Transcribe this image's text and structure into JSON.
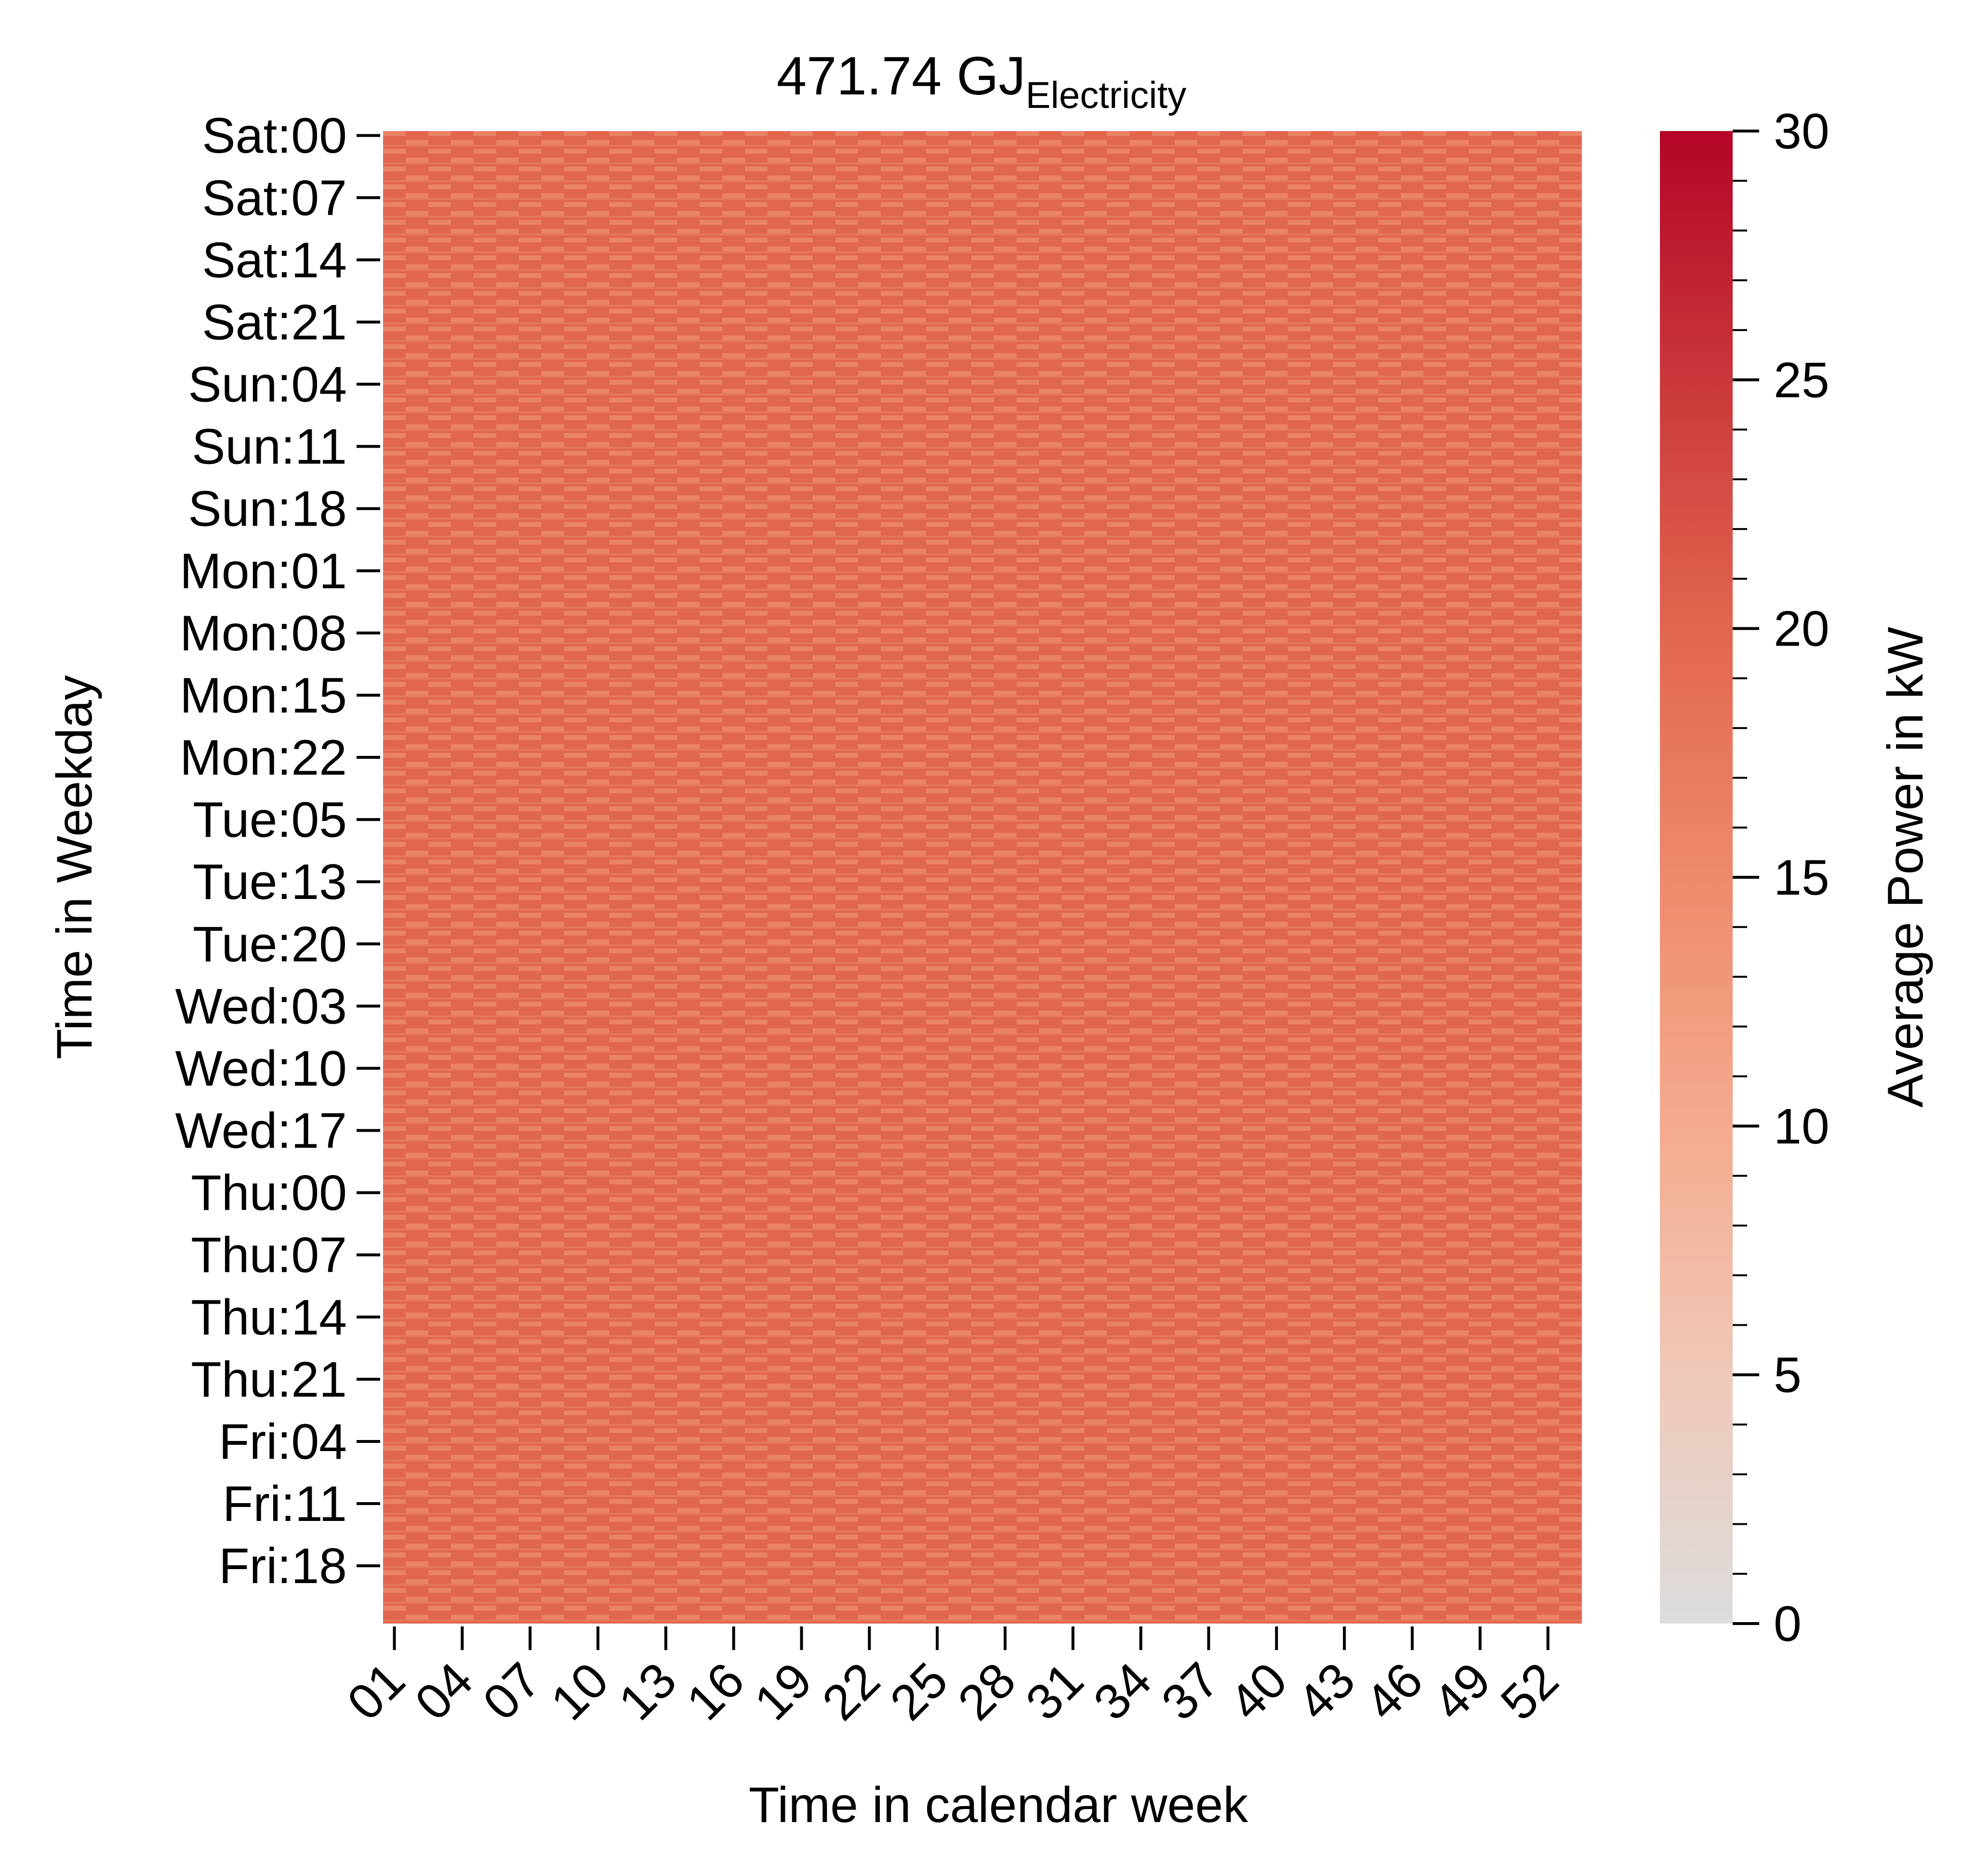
{
  "chart_data": {
    "type": "heatmap",
    "title": {
      "main": "471.74 GJ",
      "subscript": "Electricity"
    },
    "xlabel": "Time in calendar week",
    "ylabel": "Time in Weekday",
    "x_categories_count": 53,
    "y_categories_count": 168,
    "x_tick_labels": [
      "01",
      "04",
      "07",
      "10",
      "13",
      "16",
      "19",
      "22",
      "25",
      "28",
      "31",
      "34",
      "37",
      "40",
      "43",
      "46",
      "49",
      "52"
    ],
    "y_tick_labels": [
      "Sat:00",
      "Sat:07",
      "Sat:14",
      "Sat:21",
      "Sun:04",
      "Sun:11",
      "Sun:18",
      "Mon:01",
      "Mon:08",
      "Mon:15",
      "Mon:22",
      "Tue:05",
      "Tue:13",
      "Tue:20",
      "Wed:03",
      "Wed:10",
      "Wed:17",
      "Thu:00",
      "Thu:07",
      "Thu:14",
      "Thu:21",
      "Fri:04",
      "Fri:11",
      "Fri:18"
    ],
    "typical_cell_value_low": 16,
    "typical_cell_value_high": 20,
    "colorbar": {
      "label": "Average Power in kW",
      "range": [
        0,
        30
      ],
      "ticks": [
        "0",
        "5",
        "10",
        "15",
        "20",
        "25",
        "30"
      ],
      "colors": [
        "#dddddd",
        "#efc8b8",
        "#f5ab8e",
        "#ee8a6b",
        "#e1664e",
        "#c9383a",
        "#b40426"
      ]
    },
    "grid": false,
    "legend": "colorbar-right"
  }
}
